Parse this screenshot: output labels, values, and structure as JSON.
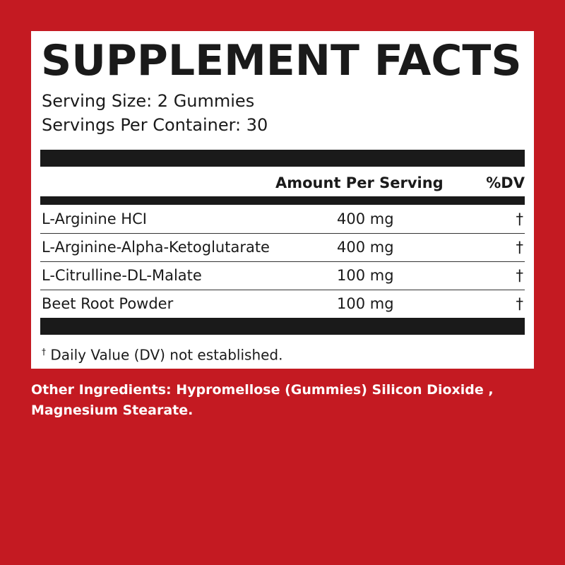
{
  "label": {
    "title": "SUPPLEMENT FACTS",
    "serving_size": "Serving Size: 2 Gummies",
    "servings_per_container": "Servings Per Container: 30",
    "header_amount": "Amount Per Serving",
    "header_dv": "%DV",
    "rows": [
      {
        "name": "L-Arginine HCI",
        "amount": "400 mg",
        "dv": "†"
      },
      {
        "name": "L-Arginine-Alpha-Ketoglutarate",
        "amount": "400 mg",
        "dv": "†"
      },
      {
        "name": "L-Citrulline-DL-Malate",
        "amount": "100 mg",
        "dv": "†"
      },
      {
        "name": "Beet Root Powder",
        "amount": "100 mg",
        "dv": "†"
      }
    ],
    "footnote_mark": "†",
    "footnote": " Daily Value (DV) not established."
  },
  "other_ingredients": "Other Ingredients: Hypromellose (Gummies) Silicon Dioxide , Magnesium Stearate.",
  "colors": {
    "background": "#c41a22",
    "panel": "#ffffff",
    "text": "#1a1a1a"
  }
}
